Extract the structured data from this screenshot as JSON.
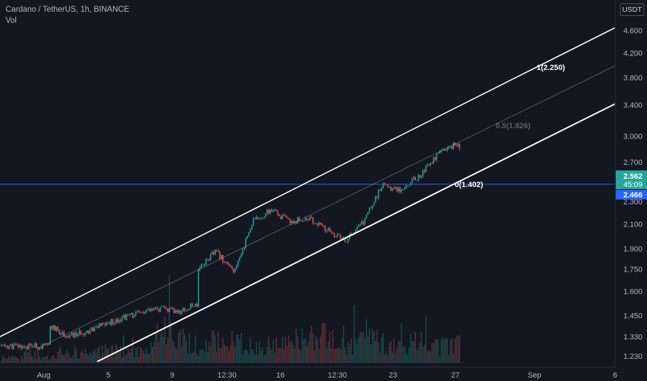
{
  "legend": {
    "symbol_line": "Cardano / TetherUS, 1h, BINANCE",
    "indicator": "Vol"
  },
  "price_scale_unit": "USDT",
  "colors": {
    "background": "#131722",
    "up": "#26a69a",
    "down": "#ef5350",
    "channel": "#ffffff",
    "price_line": "#2962ff",
    "last_price_badge": "#26a69a",
    "marker_badge": "#2962ff"
  },
  "chart_data": {
    "type": "candlestick",
    "title": "Cardano / TetherUS, 1h, BINANCE",
    "y_scale": "log",
    "ylim": [
      1.2,
      4.8
    ],
    "y_ticks": [
      4.6,
      4.2,
      3.8,
      3.4,
      3.0,
      2.7,
      2.3,
      2.1,
      1.9,
      1.75,
      1.6,
      1.45,
      1.33,
      1.23
    ],
    "y_tick_labels": [
      "4.600",
      "4.200",
      "3.800",
      "3.400",
      "3.000",
      "2.700",
      "2.300",
      "2.100",
      "1.900",
      "1.750",
      "1.600",
      "1.450",
      "1.330",
      "1.230"
    ],
    "x_tick_labels": [
      "Aug",
      "5",
      "9",
      "12:30",
      "16",
      "12:30",
      "23",
      "27",
      "Sep",
      "6"
    ],
    "current_price": 2.562,
    "countdown": "45:09",
    "marker_price": 2.466,
    "price_path": [
      {
        "x": "Jul 31",
        "y": 1.28
      },
      {
        "x": "Aug 2",
        "y": 1.39
      },
      {
        "x": "Aug 3",
        "y": 1.33
      },
      {
        "x": "Aug 4",
        "y": 1.36
      },
      {
        "x": "Aug 6",
        "y": 1.44
      },
      {
        "x": "Aug 8",
        "y": 1.49
      },
      {
        "x": "Aug 9",
        "y": 1.47
      },
      {
        "x": "Aug 10",
        "y": 1.52
      },
      {
        "x": "Aug 10",
        "y": 1.75
      },
      {
        "x": "Aug 11",
        "y": 1.88
      },
      {
        "x": "Aug 12",
        "y": 1.72
      },
      {
        "x": "Aug 13",
        "y": 2.12
      },
      {
        "x": "Aug 14",
        "y": 2.22
      },
      {
        "x": "Aug 15",
        "y": 2.12
      },
      {
        "x": "Aug 16",
        "y": 2.15
      },
      {
        "x": "Aug 17",
        "y": 2.05
      },
      {
        "x": "Aug 18",
        "y": 1.96
      },
      {
        "x": "Aug 19",
        "y": 2.12
      },
      {
        "x": "Aug 20",
        "y": 2.45
      },
      {
        "x": "Aug 21",
        "y": 2.42
      },
      {
        "x": "Aug 22",
        "y": 2.55
      },
      {
        "x": "Aug 23",
        "y": 2.78
      },
      {
        "x": "Aug 24",
        "y": 2.9
      },
      {
        "x": "Aug 25",
        "y": 2.82
      },
      {
        "x": "Aug 26",
        "y": 2.72
      },
      {
        "x": "Aug 27",
        "y": 2.48
      },
      {
        "x": "Aug 27",
        "y": 2.562
      }
    ],
    "volume_profile": [
      0.15,
      0.25,
      0.2,
      0.3,
      0.25,
      0.35,
      0.3,
      0.4,
      0.9,
      0.6,
      0.5,
      0.7,
      0.55,
      0.45,
      0.5,
      0.6,
      0.75,
      0.65,
      0.55,
      0.6,
      0.5,
      0.55,
      0.45,
      0.5
    ],
    "fib_channel": {
      "levels": [
        {
          "label": "1(2.250)",
          "level": 1,
          "value": 2.25
        },
        {
          "label": "0.5(1.826)",
          "level": 0.5,
          "value": 1.826
        },
        {
          "label": "0(1.402)",
          "level": 0,
          "value": 1.402
        }
      ]
    }
  }
}
